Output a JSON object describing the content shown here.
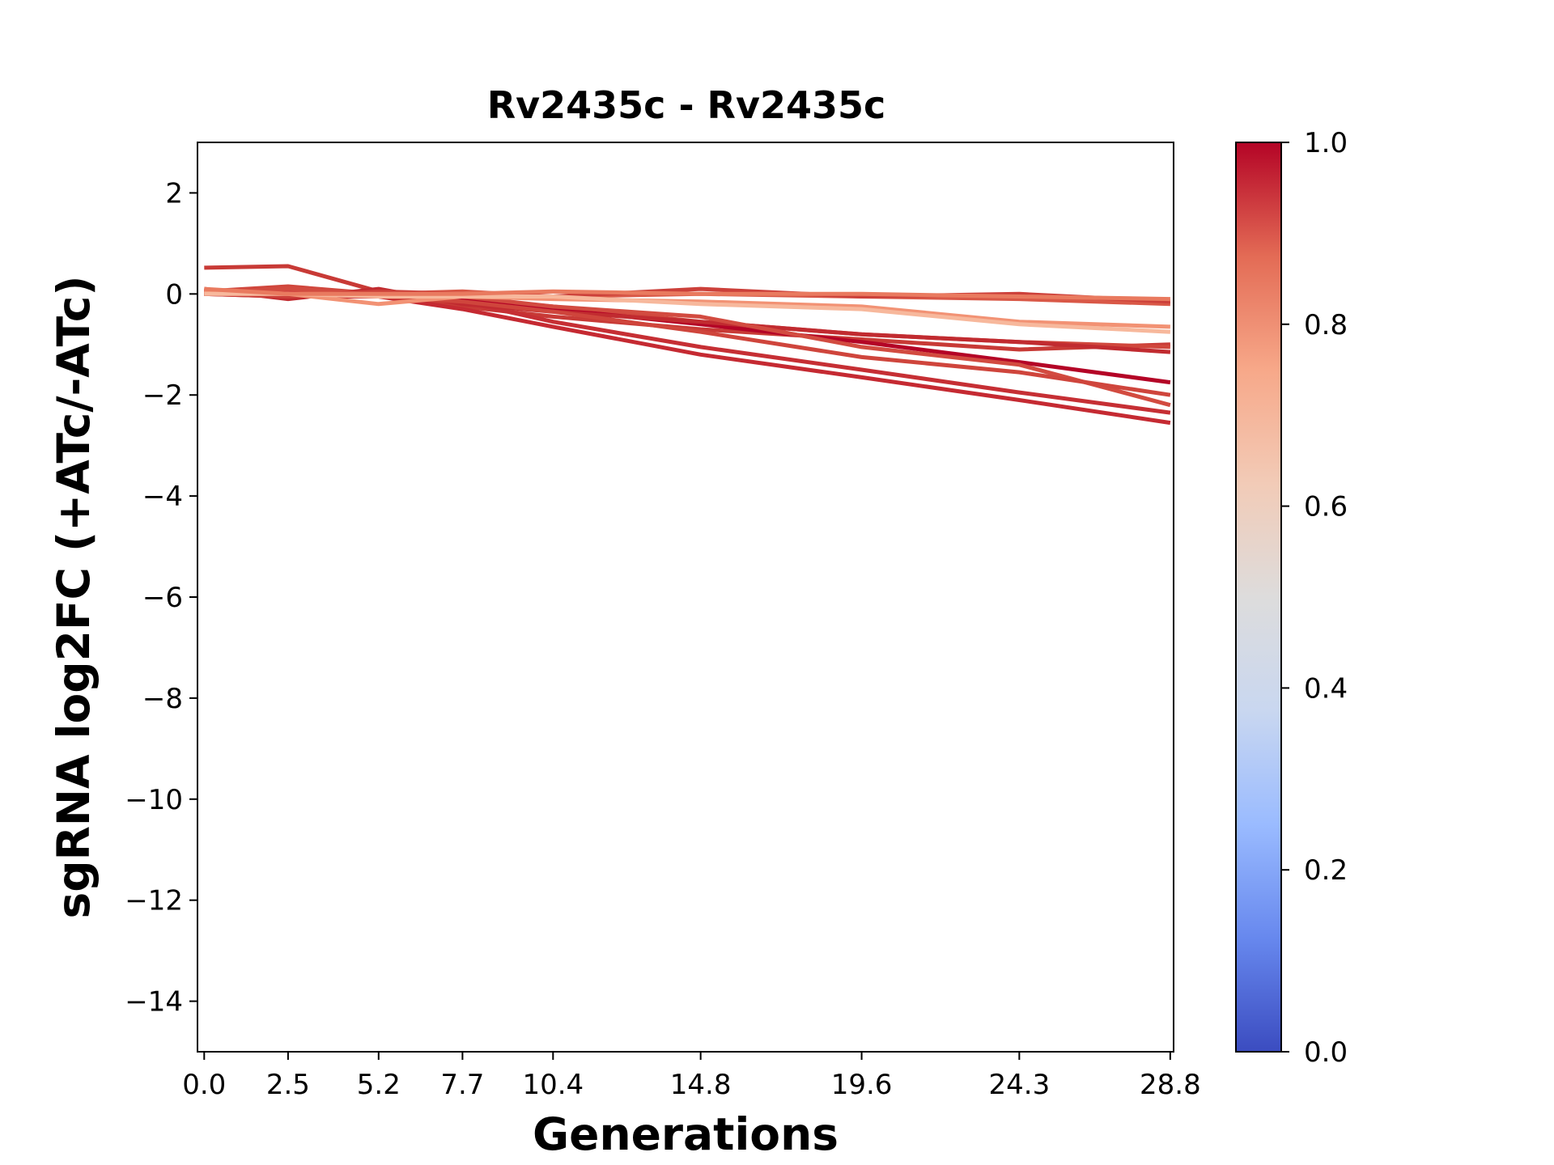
{
  "chart_data": {
    "type": "line",
    "title": "Rv2435c - Rv2435c",
    "xlabel": "Generations",
    "ylabel": "sgRNA log2FC (+ATc/-ATc)",
    "x": [
      0.0,
      2.5,
      5.2,
      7.7,
      10.4,
      14.8,
      19.6,
      24.3,
      28.8
    ],
    "x_tick_labels": [
      "0.0",
      "2.5",
      "5.2",
      "7.7",
      "10.4",
      "14.8",
      "19.6",
      "24.3",
      "28.8"
    ],
    "xlim": [
      -0.2,
      28.9
    ],
    "ylim": [
      -15,
      3
    ],
    "y_ticks": [
      2,
      0,
      -2,
      -4,
      -6,
      -8,
      -10,
      -12,
      -14
    ],
    "y_tick_labels": [
      "2",
      "0",
      "−2",
      "−4",
      "−6",
      "−8",
      "−10",
      "−12",
      "−14"
    ],
    "grid": false,
    "colorbar": {
      "colormap": "coolwarm",
      "range": [
        0.0,
        1.0
      ],
      "ticks": [
        0.0,
        0.2,
        0.4,
        0.6,
        0.8,
        1.0
      ],
      "tick_labels": [
        "0.0",
        "0.2",
        "0.4",
        "0.6",
        "0.8",
        "1.0"
      ],
      "colors": [
        "#3b4cc0",
        "#6788ee",
        "#9abbff",
        "#c9d7f0",
        "#dddcdc",
        "#f2cbb7",
        "#f7a889",
        "#e36b55",
        "#b40426"
      ]
    },
    "series": [
      {
        "color": "#c83a36",
        "values": [
          0.52,
          0.55,
          0.05,
          -0.25,
          -0.45,
          -0.7,
          -0.9,
          -1.1,
          -1.0
        ]
      },
      {
        "color": "#d0473d",
        "values": [
          0.05,
          0.15,
          0.0,
          -0.1,
          -0.25,
          -0.55,
          -0.8,
          -0.95,
          -1.05
        ]
      },
      {
        "color": "#c62f34",
        "values": [
          0.0,
          0.05,
          0.0,
          -0.15,
          -0.55,
          -1.05,
          -1.5,
          -1.95,
          -2.35
        ]
      },
      {
        "color": "#c52a32",
        "values": [
          0.0,
          -0.05,
          -0.05,
          -0.3,
          -0.65,
          -1.2,
          -1.65,
          -2.1,
          -2.55
        ]
      },
      {
        "color": "#b40426",
        "values": [
          0.05,
          0.0,
          -0.05,
          -0.1,
          -0.3,
          -0.6,
          -0.95,
          -1.35,
          -1.75
        ]
      },
      {
        "color": "#c12b30",
        "values": [
          0.1,
          -0.1,
          0.1,
          -0.2,
          -0.35,
          -0.55,
          -0.8,
          -0.95,
          -1.15
        ]
      },
      {
        "color": "#d24b40",
        "values": [
          0.0,
          0.1,
          0.0,
          -0.05,
          -0.25,
          -0.45,
          -1.05,
          -1.4,
          -2.2
        ]
      },
      {
        "color": "#cf453c",
        "values": [
          0.0,
          0.0,
          -0.05,
          -0.15,
          -0.35,
          -0.75,
          -1.25,
          -1.55,
          -2.0
        ]
      },
      {
        "color": "#d95847",
        "values": [
          0.05,
          0.0,
          0.0,
          0.05,
          -0.05,
          0.0,
          -0.05,
          -0.1,
          -0.2
        ]
      },
      {
        "color": "#cc403a",
        "values": [
          0.0,
          -0.05,
          0.05,
          0.0,
          -0.05,
          0.1,
          -0.05,
          0.0,
          -0.15
        ]
      },
      {
        "color": "#f29274",
        "values": [
          0.05,
          0.0,
          -0.2,
          -0.05,
          -0.1,
          -0.15,
          -0.25,
          -0.55,
          -0.65
        ]
      },
      {
        "color": "#f7b89c",
        "values": [
          0.0,
          0.0,
          -0.05,
          -0.05,
          -0.05,
          -0.2,
          -0.3,
          -0.6,
          -0.75
        ]
      },
      {
        "color": "#e97a5f",
        "values": [
          0.1,
          0.0,
          0.0,
          0.0,
          0.05,
          0.0,
          0.0,
          -0.05,
          -0.1
        ]
      }
    ]
  }
}
